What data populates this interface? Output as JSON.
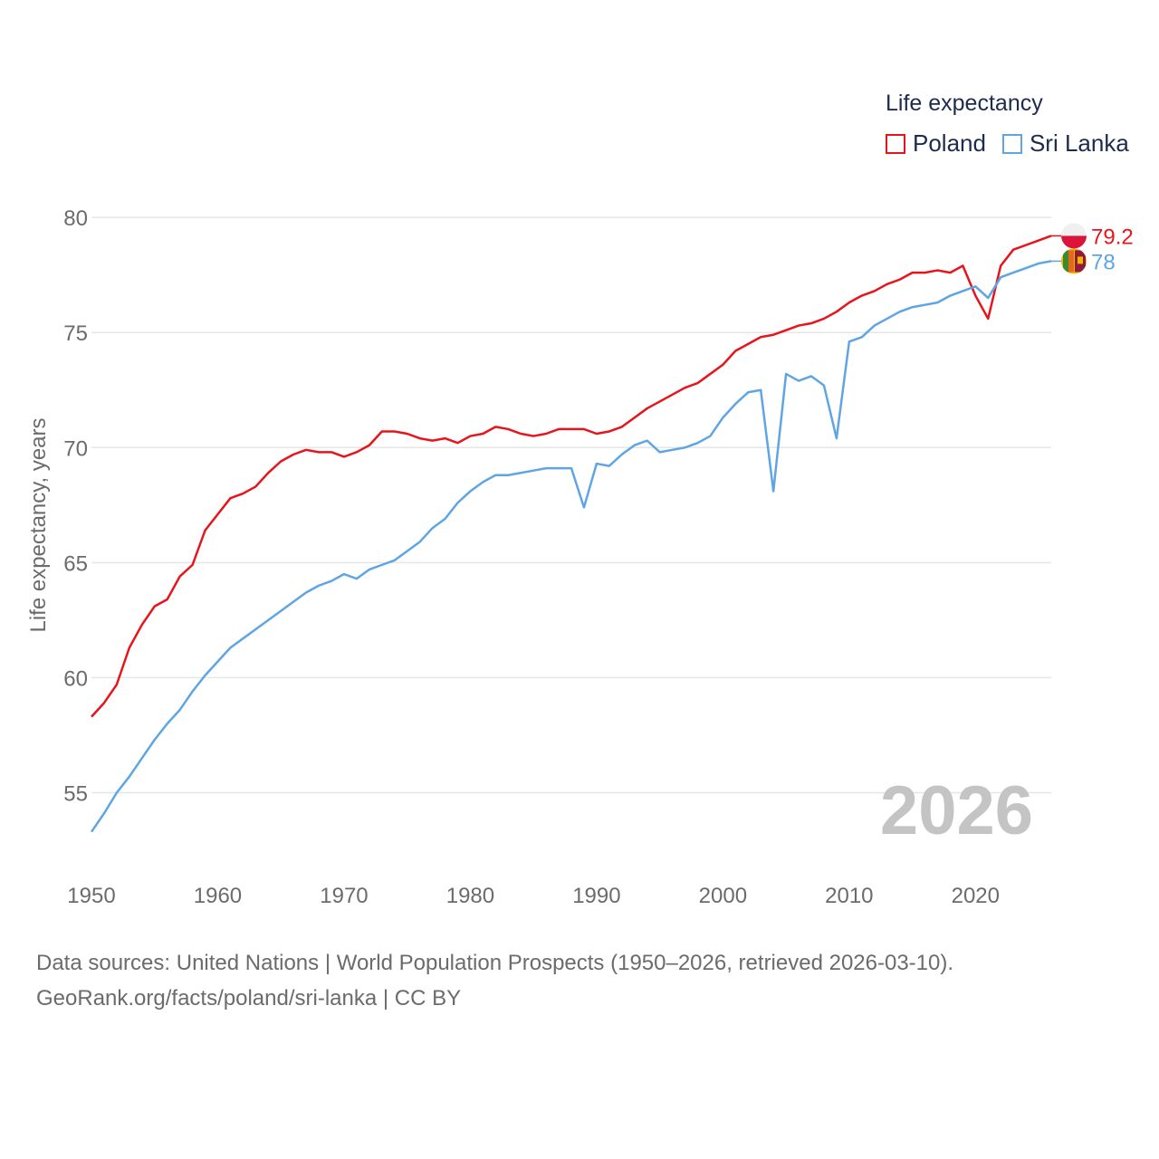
{
  "legend": {
    "title": "Life expectancy",
    "items": [
      {
        "label": "Poland",
        "color": "#e8141c"
      },
      {
        "label": "Sri Lanka",
        "color": "#5fa5e4"
      }
    ]
  },
  "current_year": "2026",
  "sources": {
    "line1": "Data sources: United Nations | World Population Prospects (1950–2026, retrieved 2026-03-10).",
    "line2": "GeoRank.org/facts/poland/sri-lanka | CC BY"
  },
  "chart_data": {
    "type": "line",
    "title": "Life expectancy",
    "xlabel": "",
    "ylabel": "Life expectancy, years",
    "xlim": [
      1950,
      2026
    ],
    "ylim": [
      52.5,
      81.5
    ],
    "xticks": [
      1950,
      1960,
      1970,
      1980,
      1990,
      2000,
      2010,
      2020
    ],
    "yticks": [
      55,
      60,
      65,
      70,
      75,
      80
    ],
    "grid": true,
    "legend_position": "top-right",
    "x": [
      1950,
      1951,
      1952,
      1953,
      1954,
      1955,
      1956,
      1957,
      1958,
      1959,
      1960,
      1961,
      1962,
      1963,
      1964,
      1965,
      1966,
      1967,
      1968,
      1969,
      1970,
      1971,
      1972,
      1973,
      1974,
      1975,
      1976,
      1977,
      1978,
      1979,
      1980,
      1981,
      1982,
      1983,
      1984,
      1985,
      1986,
      1987,
      1988,
      1989,
      1990,
      1991,
      1992,
      1993,
      1994,
      1995,
      1996,
      1997,
      1998,
      1999,
      2000,
      2001,
      2002,
      2003,
      2004,
      2005,
      2006,
      2007,
      2008,
      2009,
      2010,
      2011,
      2012,
      2013,
      2014,
      2015,
      2016,
      2017,
      2018,
      2019,
      2020,
      2021,
      2022,
      2023,
      2024,
      2025,
      2026
    ],
    "series": [
      {
        "name": "Poland",
        "color": "#e8141c",
        "end_label": "79.2",
        "values": [
          58.3,
          58.9,
          59.7,
          61.3,
          62.3,
          63.1,
          63.4,
          64.4,
          64.9,
          66.4,
          67.1,
          67.8,
          68.0,
          68.3,
          68.9,
          69.4,
          69.7,
          69.9,
          69.8,
          69.8,
          69.6,
          69.8,
          70.1,
          70.7,
          70.7,
          70.6,
          70.4,
          70.3,
          70.4,
          70.2,
          70.5,
          70.6,
          70.9,
          70.8,
          70.6,
          70.5,
          70.6,
          70.8,
          70.8,
          70.8,
          70.6,
          70.7,
          70.9,
          71.3,
          71.7,
          72.0,
          72.3,
          72.6,
          72.8,
          73.2,
          73.6,
          74.2,
          74.5,
          74.8,
          74.9,
          75.1,
          75.3,
          75.4,
          75.6,
          75.9,
          76.3,
          76.6,
          76.8,
          77.1,
          77.3,
          77.6,
          77.6,
          77.7,
          77.6,
          77.9,
          76.6,
          75.6,
          77.9,
          78.6,
          78.8,
          79.0,
          79.2
        ]
      },
      {
        "name": "Sri Lanka",
        "color": "#5fa5e4",
        "end_label": "78",
        "values": [
          53.3,
          54.1,
          55.0,
          55.7,
          56.5,
          57.3,
          58.0,
          58.6,
          59.4,
          60.1,
          60.7,
          61.3,
          61.7,
          62.1,
          62.5,
          62.9,
          63.3,
          63.7,
          64.0,
          64.2,
          64.5,
          64.3,
          64.7,
          64.9,
          65.1,
          65.5,
          65.9,
          66.5,
          66.9,
          67.6,
          68.1,
          68.5,
          68.8,
          68.8,
          68.9,
          69.0,
          69.1,
          69.1,
          69.1,
          67.4,
          69.3,
          69.2,
          69.7,
          70.1,
          70.3,
          69.8,
          69.9,
          70.0,
          70.2,
          70.5,
          71.3,
          71.9,
          72.4,
          72.5,
          68.1,
          73.2,
          72.9,
          73.1,
          72.7,
          70.4,
          74.6,
          74.8,
          75.3,
          75.6,
          75.9,
          76.1,
          76.2,
          76.3,
          76.6,
          76.8,
          77.0,
          76.5,
          77.4,
          77.6,
          77.8,
          78.0,
          78.1
        ]
      }
    ]
  }
}
